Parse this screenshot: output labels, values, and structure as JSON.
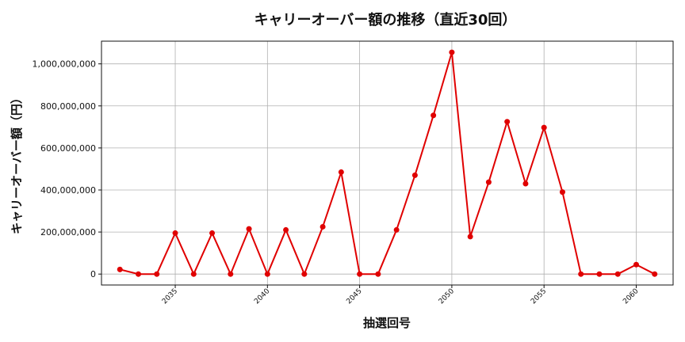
{
  "chart_data": {
    "type": "line",
    "title": "キャリーオーバー額の推移（直近30回）",
    "xlabel": "抽選回号",
    "ylabel": "キャリーオーバー額（円）",
    "x": [
      2032,
      2033,
      2034,
      2035,
      2036,
      2037,
      2038,
      2039,
      2040,
      2041,
      2042,
      2043,
      2044,
      2045,
      2046,
      2047,
      2048,
      2049,
      2050,
      2051,
      2052,
      2053,
      2054,
      2055,
      2056,
      2057,
      2058,
      2059,
      2060,
      2061
    ],
    "series": [
      {
        "values": [
          22000000,
          0,
          0,
          195000000,
          0,
          195000000,
          0,
          215000000,
          0,
          210000000,
          0,
          225000000,
          485000000,
          0,
          0,
          210000000,
          470000000,
          755000000,
          1055000000,
          178000000,
          437000000,
          725000000,
          430000000,
          697000000,
          390000000,
          0,
          0,
          0,
          45000000,
          0
        ],
        "color": "#e00000"
      }
    ],
    "xticks": [
      2035,
      2040,
      2045,
      2050,
      2055,
      2060
    ],
    "yticks": [
      0,
      200000000,
      400000000,
      600000000,
      800000000,
      1000000000
    ],
    "ytick_labels": [
      "0",
      "200,000,000",
      "400,000,000",
      "600,000,000",
      "800,000,000",
      "1,000,000,000"
    ],
    "xlim": [
      2031,
      2062
    ],
    "ylim": [
      -52000000,
      1108000000
    ],
    "grid": true
  }
}
